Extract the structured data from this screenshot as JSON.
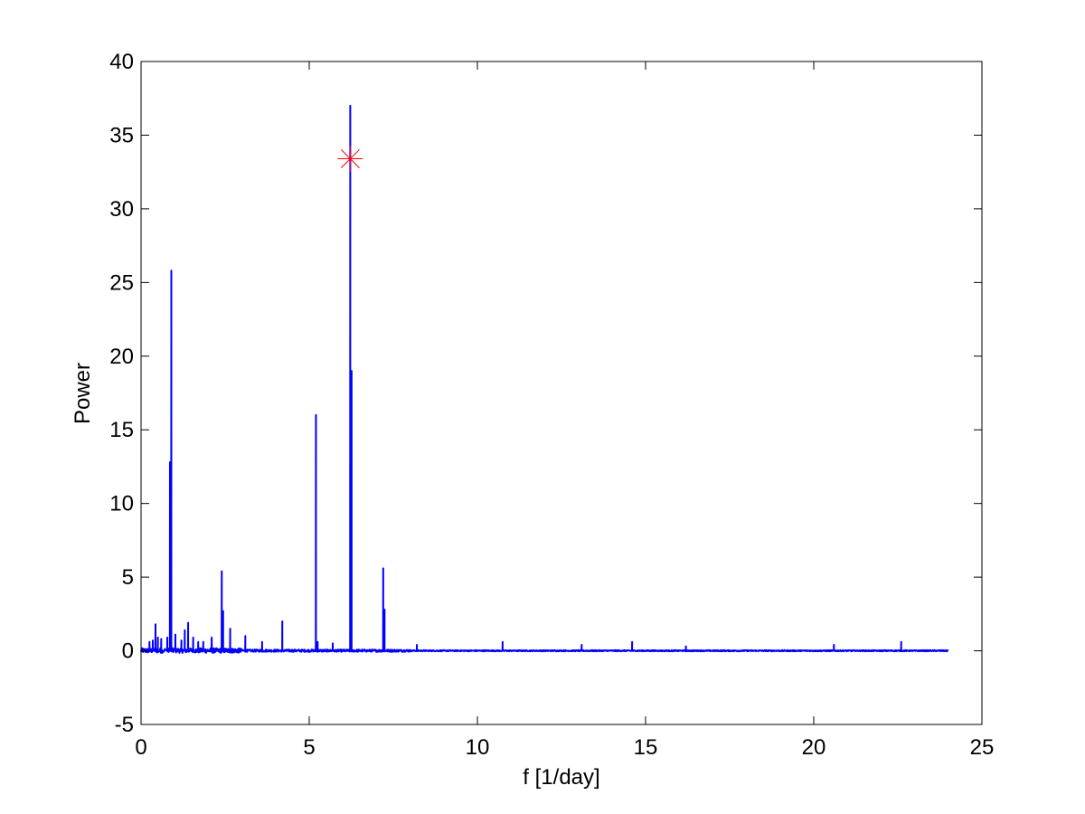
{
  "chart_data": {
    "type": "line",
    "title": "",
    "xlabel": "f [1/day]",
    "ylabel": "Power",
    "xlim": [
      0,
      25
    ],
    "ylim": [
      -5,
      40
    ],
    "xticks": [
      0,
      5,
      10,
      15,
      20,
      25
    ],
    "yticks": [
      -5,
      0,
      5,
      10,
      15,
      20,
      25,
      30,
      35,
      40
    ],
    "xtick_labels": [
      "0",
      "5",
      "10",
      "15",
      "20",
      "25"
    ],
    "ytick_labels": [
      "-5",
      "0",
      "5",
      "10",
      "15",
      "20",
      "25",
      "30",
      "35",
      "40"
    ],
    "grid": false,
    "legend": "none",
    "x_range_of_series": [
      0,
      24
    ],
    "series": [
      {
        "color": "#0000ff",
        "peaks": [
          {
            "x": 0.25,
            "y": 0.6
          },
          {
            "x": 0.35,
            "y": 0.7
          },
          {
            "x": 0.43,
            "y": 1.8
          },
          {
            "x": 0.5,
            "y": 0.9
          },
          {
            "x": 0.6,
            "y": 0.8
          },
          {
            "x": 0.78,
            "y": 0.9
          },
          {
            "x": 0.86,
            "y": 12.8
          },
          {
            "x": 0.9,
            "y": 25.8
          },
          {
            "x": 1.02,
            "y": 1.1
          },
          {
            "x": 1.2,
            "y": 0.7
          },
          {
            "x": 1.3,
            "y": 1.4
          },
          {
            "x": 1.4,
            "y": 1.9
          },
          {
            "x": 1.55,
            "y": 0.9
          },
          {
            "x": 1.7,
            "y": 0.6
          },
          {
            "x": 1.85,
            "y": 0.6
          },
          {
            "x": 2.1,
            "y": 0.9
          },
          {
            "x": 2.4,
            "y": 5.4
          },
          {
            "x": 2.44,
            "y": 2.7
          },
          {
            "x": 2.65,
            "y": 1.5
          },
          {
            "x": 3.1,
            "y": 1.0
          },
          {
            "x": 3.6,
            "y": 0.6
          },
          {
            "x": 4.2,
            "y": 2.0
          },
          {
            "x": 5.2,
            "y": 16.0
          },
          {
            "x": 5.25,
            "y": 0.6
          },
          {
            "x": 5.7,
            "y": 0.5
          },
          {
            "x": 6.22,
            "y": 37.0
          },
          {
            "x": 6.26,
            "y": 19.0
          },
          {
            "x": 7.2,
            "y": 5.6
          },
          {
            "x": 7.24,
            "y": 2.8
          },
          {
            "x": 8.2,
            "y": 0.4
          },
          {
            "x": 10.75,
            "y": 0.6
          },
          {
            "x": 13.1,
            "y": 0.4
          },
          {
            "x": 14.6,
            "y": 0.6
          },
          {
            "x": 16.2,
            "y": 0.3
          },
          {
            "x": 20.6,
            "y": 0.4
          },
          {
            "x": 22.6,
            "y": 0.6
          }
        ]
      }
    ],
    "markers": [
      {
        "symbol": "asterisk",
        "color": "#ff0000",
        "x": 6.22,
        "y": 33.4
      }
    ]
  }
}
